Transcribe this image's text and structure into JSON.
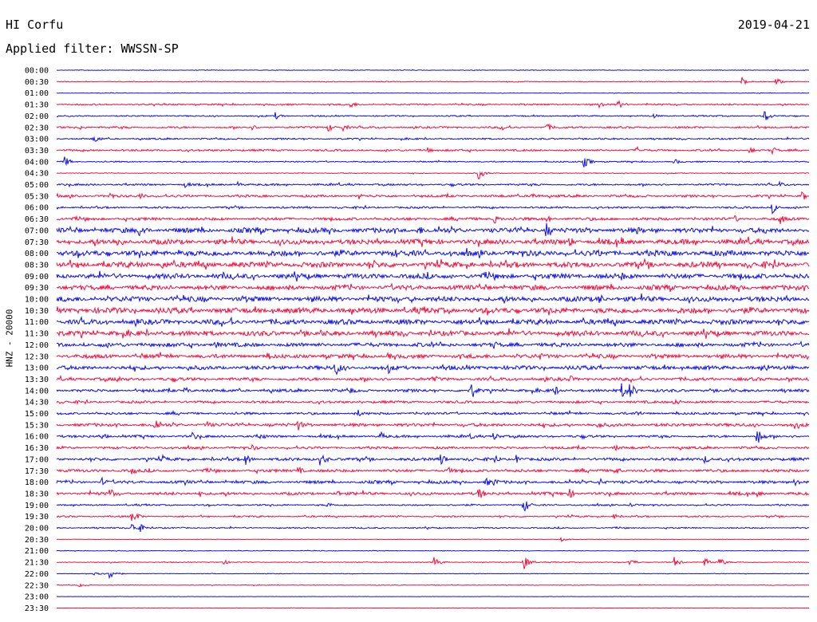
{
  "header": {
    "station": "HI Corfu",
    "date": "2019-04-21",
    "filter": "Applied filter: WWSSN-SP"
  },
  "channel_label": "HNZ - 20000",
  "colors": {
    "blue": "#1010e8",
    "red": "#f01040",
    "text": "#000000"
  },
  "chart_data": {
    "type": "line",
    "subtype": "helicorder",
    "row_interval_minutes": 30,
    "row_labels": [
      "00:00",
      "00:30",
      "01:00",
      "01:30",
      "02:00",
      "02:30",
      "03:00",
      "03:30",
      "04:00",
      "04:30",
      "05:00",
      "05:30",
      "06:00",
      "06:30",
      "07:00",
      "07:30",
      "08:00",
      "08:30",
      "09:00",
      "09:30",
      "10:00",
      "10:30",
      "11:00",
      "11:30",
      "12:00",
      "12:30",
      "13:00",
      "13:30",
      "14:00",
      "14:30",
      "15:00",
      "15:30",
      "16:00",
      "16:30",
      "17:00",
      "17:30",
      "18:00",
      "18:30",
      "19:00",
      "19:30",
      "20:00",
      "20:30",
      "21:00",
      "21:30",
      "22:00",
      "22:30",
      "23:00",
      "23:30"
    ],
    "row_colors": [
      "blue",
      "red"
    ],
    "noise_level": [
      0.4,
      0.5,
      0.3,
      1.0,
      0.8,
      1.2,
      1.0,
      1.2,
      0.8,
      0.5,
      1.2,
      1.5,
      1.2,
      1.8,
      3.0,
      3.2,
      3.5,
      3.5,
      3.2,
      3.0,
      3.2,
      3.5,
      3.2,
      3.2,
      2.5,
      2.5,
      2.5,
      2.0,
      1.8,
      1.5,
      1.5,
      2.0,
      1.5,
      1.5,
      1.8,
      1.8,
      1.8,
      1.8,
      1.0,
      1.0,
      0.8,
      0.3,
      0.4,
      0.5,
      0.3,
      0.4,
      0.2,
      0.2
    ],
    "events": [
      {
        "row": 1,
        "t": 0.91,
        "a": 6
      },
      {
        "row": 1,
        "t": 0.955,
        "a": 5
      },
      {
        "row": 3,
        "t": 0.39,
        "a": 5
      },
      {
        "row": 3,
        "t": 0.72,
        "a": 6
      },
      {
        "row": 3,
        "t": 0.745,
        "a": 6
      },
      {
        "row": 4,
        "t": 0.29,
        "a": 5
      },
      {
        "row": 4,
        "t": 0.79,
        "a": 4
      },
      {
        "row": 4,
        "t": 0.94,
        "a": 8
      },
      {
        "row": 5,
        "t": 0.03,
        "a": 4
      },
      {
        "row": 5,
        "t": 0.26,
        "a": 4
      },
      {
        "row": 5,
        "t": 0.36,
        "a": 6
      },
      {
        "row": 5,
        "t": 0.38,
        "a": 5
      },
      {
        "row": 5,
        "t": 0.59,
        "a": 5
      },
      {
        "row": 5,
        "t": 0.65,
        "a": 6
      },
      {
        "row": 6,
        "t": 0.05,
        "a": 6
      },
      {
        "row": 7,
        "t": 0.49,
        "a": 5
      },
      {
        "row": 7,
        "t": 0.77,
        "a": 5
      },
      {
        "row": 7,
        "t": 0.92,
        "a": 5
      },
      {
        "row": 7,
        "t": 0.95,
        "a": 5
      },
      {
        "row": 8,
        "t": 0.01,
        "a": 7
      },
      {
        "row": 8,
        "t": 0.7,
        "a": 8
      },
      {
        "row": 8,
        "t": 0.82,
        "a": 4
      },
      {
        "row": 9,
        "t": 0.56,
        "a": 8
      },
      {
        "row": 10,
        "t": 0.17,
        "a": 5
      },
      {
        "row": 10,
        "t": 0.24,
        "a": 4
      },
      {
        "row": 10,
        "t": 0.96,
        "a": 4
      },
      {
        "row": 11,
        "t": 0.07,
        "a": 5
      },
      {
        "row": 11,
        "t": 0.11,
        "a": 5
      },
      {
        "row": 11,
        "t": 0.4,
        "a": 5
      },
      {
        "row": 11,
        "t": 0.63,
        "a": 6
      },
      {
        "row": 11,
        "t": 0.99,
        "a": 7
      },
      {
        "row": 12,
        "t": 0.95,
        "a": 8
      },
      {
        "row": 13,
        "t": 0.58,
        "a": 7
      },
      {
        "row": 13,
        "t": 0.65,
        "a": 6
      },
      {
        "row": 13,
        "t": 0.9,
        "a": 5
      },
      {
        "row": 13,
        "t": 0.96,
        "a": 8
      },
      {
        "row": 14,
        "t": 0.11,
        "a": 12
      },
      {
        "row": 14,
        "t": 0.48,
        "a": 8
      },
      {
        "row": 14,
        "t": 0.65,
        "a": 12
      },
      {
        "row": 14,
        "t": 0.77,
        "a": 6
      },
      {
        "row": 14,
        "t": 0.94,
        "a": 6
      },
      {
        "row": 15,
        "t": 0.08,
        "a": 8
      },
      {
        "row": 15,
        "t": 0.68,
        "a": 8
      },
      {
        "row": 15,
        "t": 0.75,
        "a": 6
      },
      {
        "row": 16,
        "t": 0.16,
        "a": 6
      },
      {
        "row": 16,
        "t": 0.45,
        "a": 6
      },
      {
        "row": 16,
        "t": 0.72,
        "a": 6
      },
      {
        "row": 17,
        "t": 0.14,
        "a": 8
      },
      {
        "row": 17,
        "t": 0.42,
        "a": 7
      },
      {
        "row": 18,
        "t": 0.22,
        "a": 6
      },
      {
        "row": 18,
        "t": 0.75,
        "a": 6
      },
      {
        "row": 20,
        "t": 0.27,
        "a": 6
      },
      {
        "row": 20,
        "t": 0.47,
        "a": 5
      },
      {
        "row": 20,
        "t": 0.72,
        "a": 8
      },
      {
        "row": 22,
        "t": 0.23,
        "a": 8
      },
      {
        "row": 22,
        "t": 0.04,
        "a": 5
      },
      {
        "row": 24,
        "t": 0.21,
        "a": 6
      },
      {
        "row": 24,
        "t": 0.58,
        "a": 6
      },
      {
        "row": 25,
        "t": 0.28,
        "a": 6
      },
      {
        "row": 25,
        "t": 0.44,
        "a": 5
      },
      {
        "row": 25,
        "t": 0.64,
        "a": 6
      },
      {
        "row": 26,
        "t": 0.03,
        "a": 5
      },
      {
        "row": 26,
        "t": 0.37,
        "a": 12
      },
      {
        "row": 26,
        "t": 0.44,
        "a": 8
      },
      {
        "row": 26,
        "t": 0.94,
        "a": 7
      },
      {
        "row": 27,
        "t": 0.08,
        "a": 6
      },
      {
        "row": 27,
        "t": 0.5,
        "a": 6
      },
      {
        "row": 27,
        "t": 0.68,
        "a": 6
      },
      {
        "row": 27,
        "t": 0.97,
        "a": 5
      },
      {
        "row": 28,
        "t": 0.17,
        "a": 5
      },
      {
        "row": 28,
        "t": 0.39,
        "a": 5
      },
      {
        "row": 28,
        "t": 0.55,
        "a": 12
      },
      {
        "row": 28,
        "t": 0.66,
        "a": 8
      },
      {
        "row": 28,
        "t": 0.75,
        "a": 11
      },
      {
        "row": 28,
        "t": 0.76,
        "a": 12
      },
      {
        "row": 29,
        "t": 0.82,
        "a": 6
      },
      {
        "row": 30,
        "t": 0.4,
        "a": 5
      },
      {
        "row": 30,
        "t": 0.77,
        "a": 5
      },
      {
        "row": 31,
        "t": 0.13,
        "a": 11
      },
      {
        "row": 31,
        "t": 0.2,
        "a": 5
      },
      {
        "row": 31,
        "t": 0.32,
        "a": 8
      },
      {
        "row": 31,
        "t": 0.72,
        "a": 6
      },
      {
        "row": 31,
        "t": 0.98,
        "a": 6
      },
      {
        "row": 32,
        "t": 0.06,
        "a": 5
      },
      {
        "row": 32,
        "t": 0.18,
        "a": 6
      },
      {
        "row": 32,
        "t": 0.27,
        "a": 6
      },
      {
        "row": 32,
        "t": 0.43,
        "a": 6
      },
      {
        "row": 32,
        "t": 0.55,
        "a": 5
      },
      {
        "row": 32,
        "t": 0.58,
        "a": 6
      },
      {
        "row": 32,
        "t": 0.93,
        "a": 12
      },
      {
        "row": 33,
        "t": 0.26,
        "a": 5
      },
      {
        "row": 33,
        "t": 0.74,
        "a": 5
      },
      {
        "row": 34,
        "t": 0.14,
        "a": 6
      },
      {
        "row": 34,
        "t": 0.25,
        "a": 8
      },
      {
        "row": 34,
        "t": 0.35,
        "a": 10
      },
      {
        "row": 34,
        "t": 0.51,
        "a": 9
      },
      {
        "row": 34,
        "t": 0.58,
        "a": 7
      },
      {
        "row": 34,
        "t": 0.61,
        "a": 6
      },
      {
        "row": 34,
        "t": 0.86,
        "a": 6
      },
      {
        "row": 35,
        "t": 0.1,
        "a": 6
      },
      {
        "row": 35,
        "t": 0.32,
        "a": 6
      },
      {
        "row": 35,
        "t": 0.52,
        "a": 5
      },
      {
        "row": 35,
        "t": 0.74,
        "a": 7
      },
      {
        "row": 36,
        "t": 0.06,
        "a": 6
      },
      {
        "row": 36,
        "t": 0.17,
        "a": 5
      },
      {
        "row": 36,
        "t": 0.57,
        "a": 6
      },
      {
        "row": 36,
        "t": 0.58,
        "a": 6
      },
      {
        "row": 36,
        "t": 0.72,
        "a": 6
      },
      {
        "row": 36,
        "t": 0.98,
        "a": 7
      },
      {
        "row": 37,
        "t": 0.07,
        "a": 8
      },
      {
        "row": 37,
        "t": 0.19,
        "a": 5
      },
      {
        "row": 37,
        "t": 0.37,
        "a": 6
      },
      {
        "row": 37,
        "t": 0.56,
        "a": 9
      },
      {
        "row": 37,
        "t": 0.68,
        "a": 7
      },
      {
        "row": 37,
        "t": 0.93,
        "a": 5
      },
      {
        "row": 38,
        "t": 0.36,
        "a": 4
      },
      {
        "row": 38,
        "t": 0.62,
        "a": 10
      },
      {
        "row": 38,
        "t": 0.76,
        "a": 4
      },
      {
        "row": 39,
        "t": 0.1,
        "a": 10
      },
      {
        "row": 39,
        "t": 0.74,
        "a": 4
      },
      {
        "row": 40,
        "t": 0.1,
        "a": 7
      },
      {
        "row": 40,
        "t": 0.11,
        "a": 6
      },
      {
        "row": 41,
        "t": 0.67,
        "a": 3
      },
      {
        "row": 43,
        "t": 0.22,
        "a": 4
      },
      {
        "row": 43,
        "t": 0.5,
        "a": 8
      },
      {
        "row": 43,
        "t": 0.62,
        "a": 10
      },
      {
        "row": 43,
        "t": 0.76,
        "a": 6
      },
      {
        "row": 43,
        "t": 0.82,
        "a": 7
      },
      {
        "row": 43,
        "t": 0.86,
        "a": 6
      },
      {
        "row": 43,
        "t": 0.88,
        "a": 6
      },
      {
        "row": 44,
        "t": 0.05,
        "a": 5
      },
      {
        "row": 44,
        "t": 0.07,
        "a": 8
      },
      {
        "row": 45,
        "t": 0.03,
        "a": 3
      }
    ]
  }
}
